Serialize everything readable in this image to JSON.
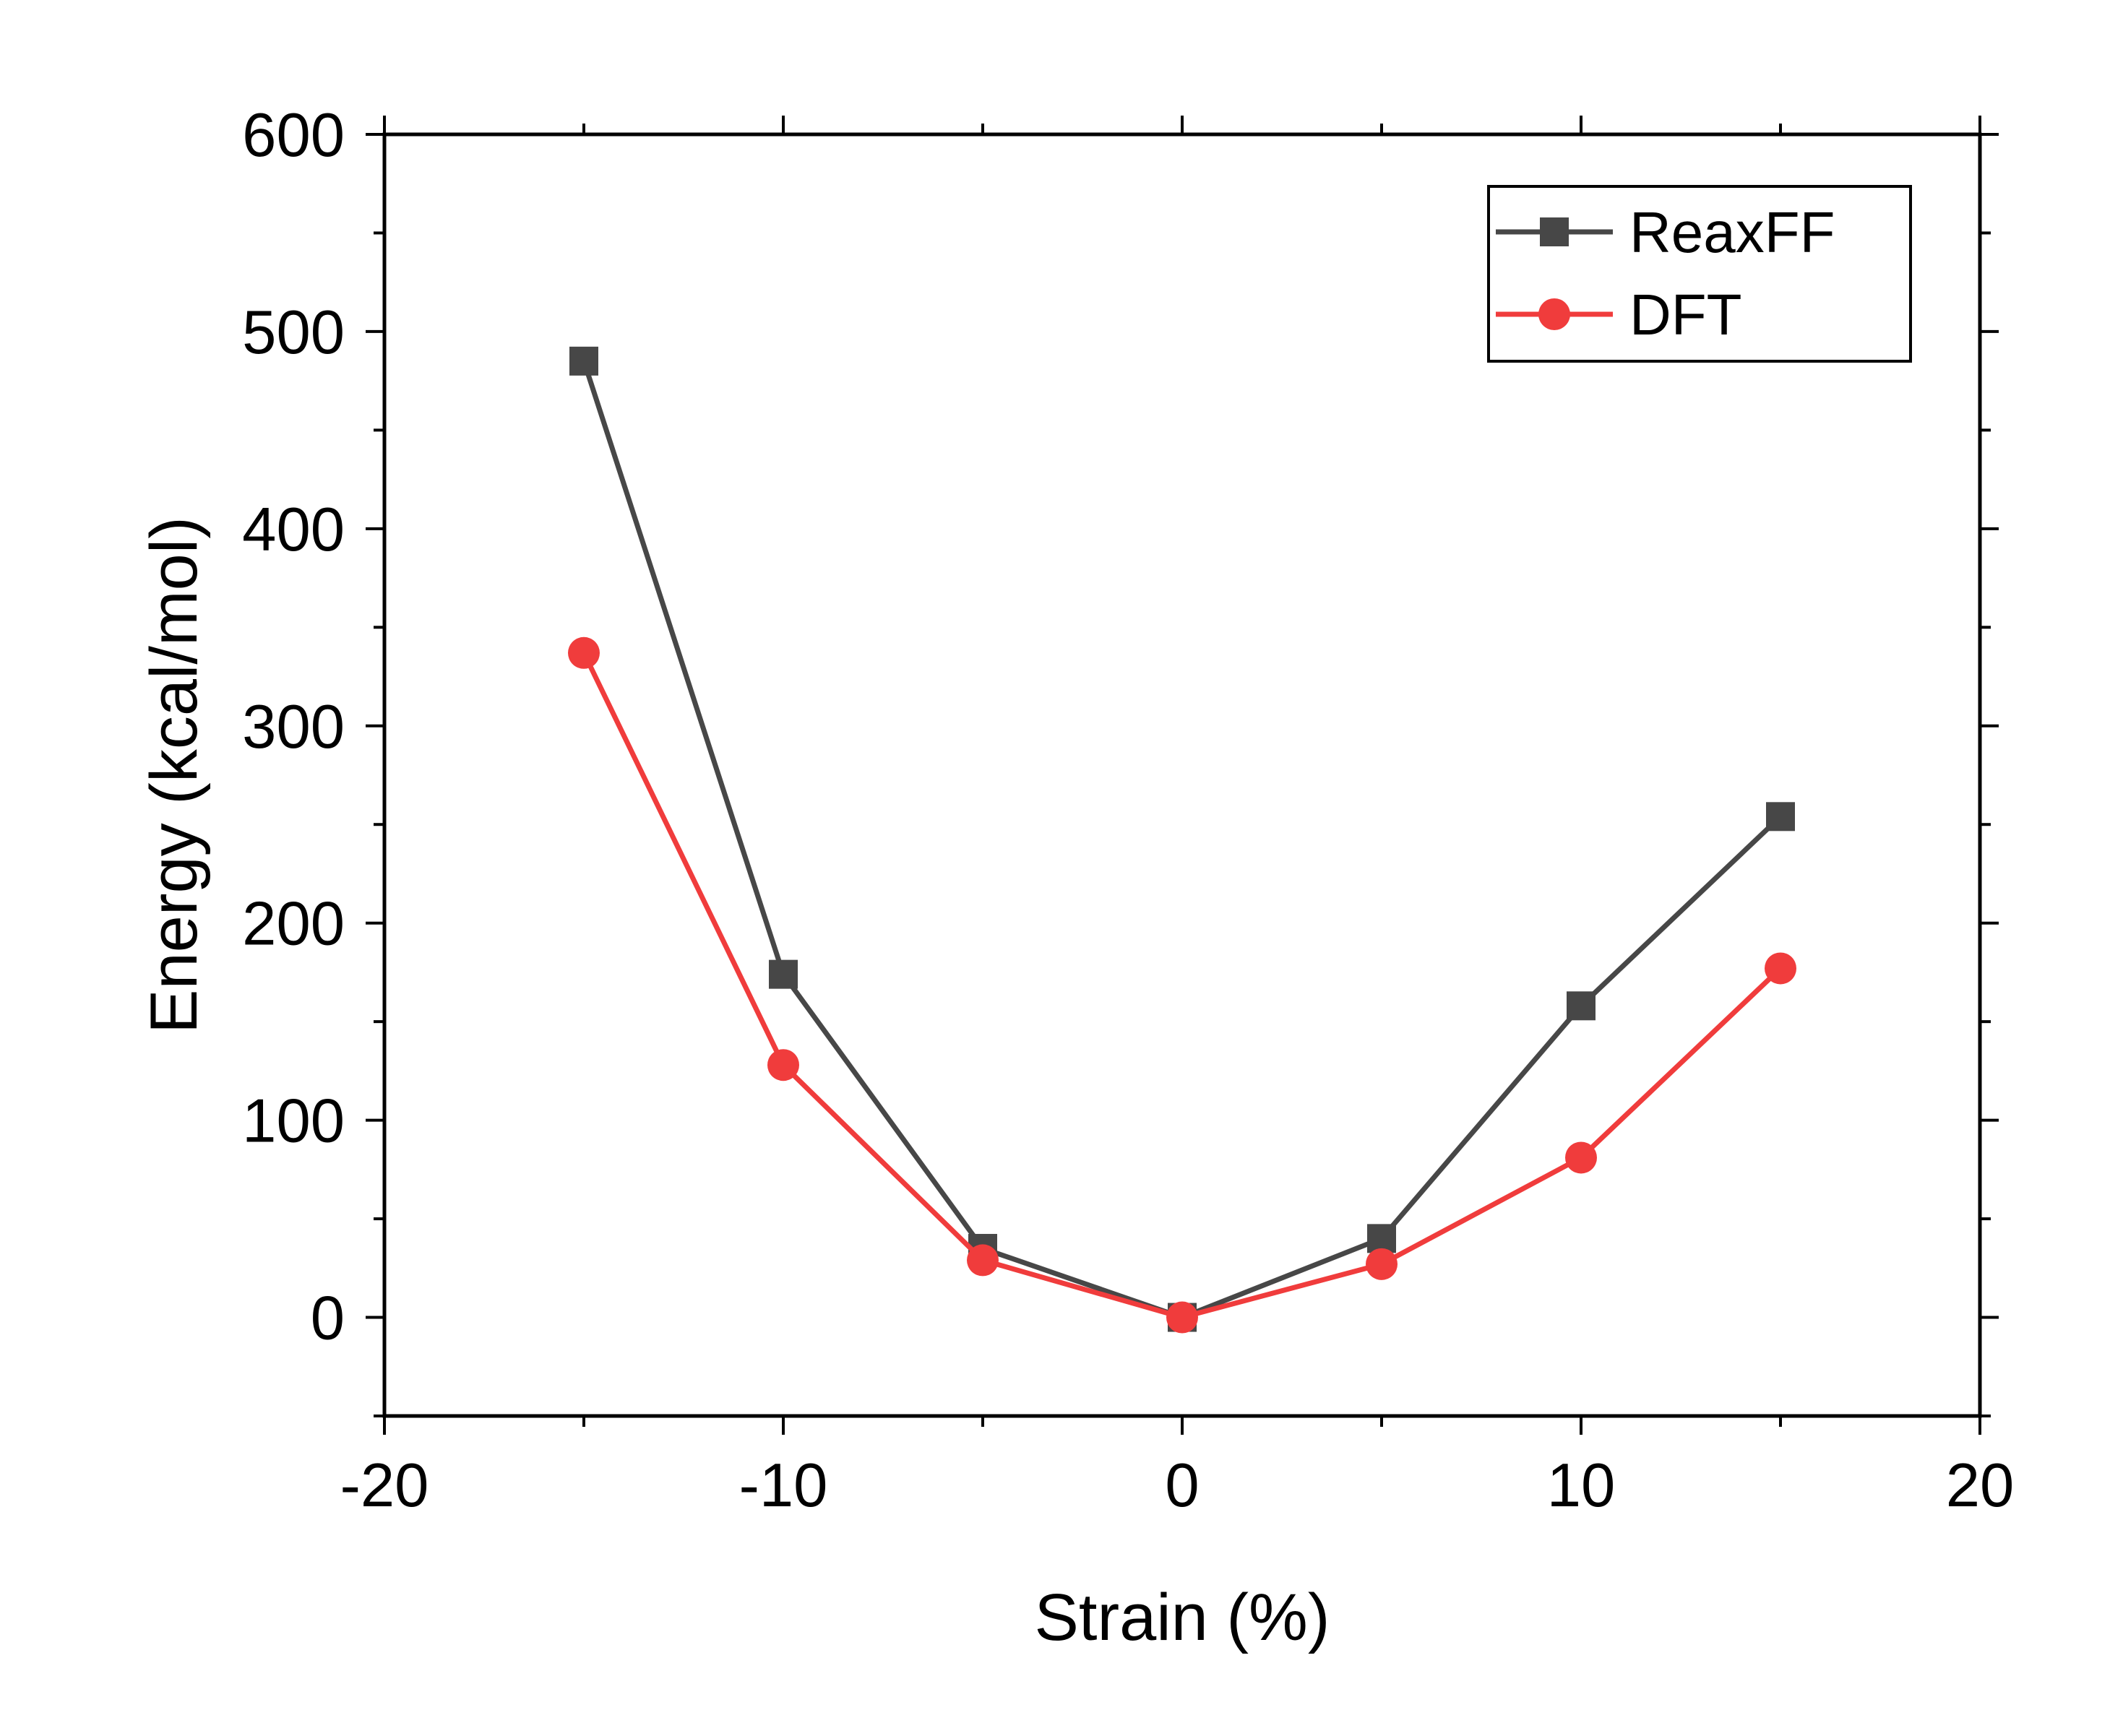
{
  "chart_data": {
    "type": "line",
    "title": "",
    "xlabel": "Strain (%)",
    "ylabel": "Energy (kcal/mol)",
    "xlim": [
      -20,
      20
    ],
    "ylim": [
      -50,
      600
    ],
    "xticks": [
      -20,
      -10,
      0,
      10,
      20
    ],
    "yticks": [
      0,
      100,
      200,
      300,
      400,
      500,
      600
    ],
    "x": [
      -15,
      -10,
      -5,
      0,
      5,
      10,
      15
    ],
    "series": [
      {
        "name": "ReaxFF",
        "color": "#474747",
        "marker": "square",
        "values": [
          485,
          174,
          35,
          0,
          40,
          158,
          254
        ]
      },
      {
        "name": "DFT",
        "color": "#f03c3c",
        "marker": "circle",
        "values": [
          337,
          128,
          29,
          0,
          27,
          81,
          177
        ]
      }
    ],
    "legend": "top-right",
    "grid": false
  }
}
